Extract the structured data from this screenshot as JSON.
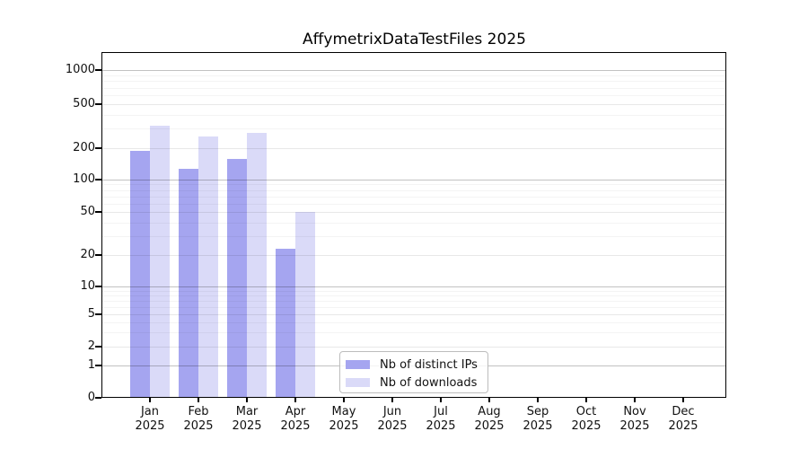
{
  "title": "AffymetrixDataTestFiles 2025",
  "chart_data": {
    "type": "bar",
    "title": "AffymetrixDataTestFiles 2025",
    "categories": [
      "Jan 2025",
      "Feb 2025",
      "Mar 2025",
      "Apr 2025",
      "May 2025",
      "Jun 2025",
      "Jul 2025",
      "Aug 2025",
      "Sep 2025",
      "Oct 2025",
      "Nov 2025",
      "Dec 2025"
    ],
    "series": [
      {
        "name": "Nb of distinct IPs",
        "color": "#a5a5f0",
        "values": [
          188,
          127,
          158,
          23,
          null,
          null,
          null,
          null,
          null,
          null,
          null,
          null
        ]
      },
      {
        "name": "Nb of downloads",
        "color": "#dadaf8",
        "values": [
          320,
          255,
          275,
          50,
          null,
          null,
          null,
          null,
          null,
          null,
          null,
          null
        ]
      }
    ],
    "yscale": "symlog",
    "yticks": [
      0,
      1,
      2,
      5,
      10,
      20,
      50,
      100,
      200,
      500,
      1000
    ],
    "ylim": [
      0,
      1500
    ],
    "xlabel": "",
    "ylabel": "",
    "grid": true,
    "legend_position": "inside-bottom-center"
  }
}
